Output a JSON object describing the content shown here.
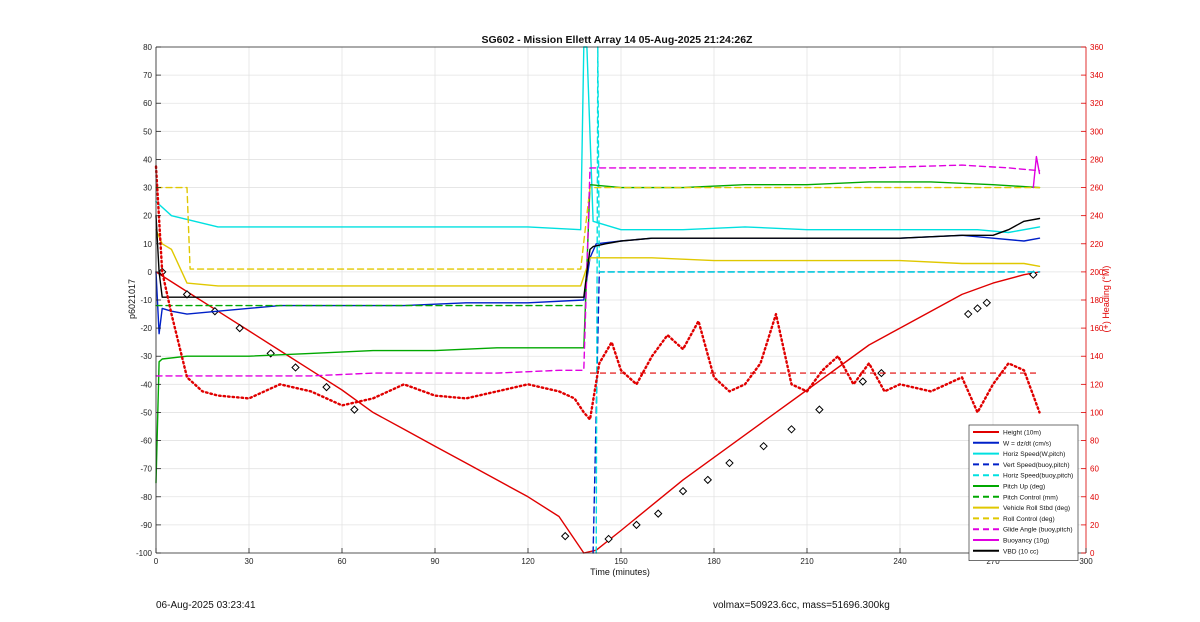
{
  "chart_data": {
    "type": "line",
    "title": "SG602 - Mission Ellett Array 14 05-Aug-2025 21:24:26Z",
    "xlabel": "Time (minutes)",
    "ylabel": "p6021017",
    "y2label": "(+) Heading (°M)",
    "xlim": [
      0,
      300
    ],
    "ylim": [
      -100,
      80
    ],
    "y2lim": [
      0,
      360
    ],
    "xticks": [
      0,
      30,
      60,
      90,
      120,
      150,
      180,
      210,
      240,
      270,
      300
    ],
    "yticks": [
      -100,
      -90,
      -80,
      -70,
      -60,
      -50,
      -40,
      -30,
      -20,
      -10,
      0,
      10,
      20,
      30,
      40,
      50,
      60,
      70,
      80
    ],
    "y2ticks": [
      0,
      20,
      40,
      60,
      80,
      100,
      120,
      140,
      160,
      180,
      200,
      220,
      240,
      260,
      280,
      300,
      320,
      340,
      360
    ],
    "grid": true,
    "legend_position": "bottom-right",
    "series": [
      {
        "name": "Height (10m)",
        "color": "#e00000",
        "style": "solid",
        "x": [
          0,
          10,
          20,
          30,
          40,
          50,
          60,
          70,
          80,
          90,
          100,
          110,
          120,
          130,
          138,
          142,
          150,
          160,
          170,
          180,
          190,
          200,
          210,
          220,
          230,
          240,
          250,
          260,
          270,
          280,
          285
        ],
        "y": [
          0,
          -7,
          -14,
          -21,
          -28,
          -35,
          -42,
          -50,
          -56,
          -62,
          -68,
          -74,
          -80,
          -87,
          -100,
          -99,
          -92,
          -83,
          -74,
          -66,
          -58,
          -50,
          -42,
          -34,
          -26,
          -20,
          -14,
          -8,
          -4,
          -1,
          0
        ],
        "markers_x": [
          2,
          10,
          19,
          27,
          37,
          45,
          55,
          64,
          132,
          146,
          155,
          162,
          170,
          178,
          185,
          196,
          205,
          214,
          228,
          234,
          262,
          265,
          268,
          283
        ],
        "markers_y": [
          0,
          -8,
          -14,
          -20,
          -29,
          -34,
          -41,
          -49,
          -94,
          -95,
          -90,
          -86,
          -78,
          -74,
          -68,
          -62,
          -56,
          -49,
          -39,
          -36,
          -15,
          -13,
          -11,
          -1
        ]
      },
      {
        "name": "W = dz/dt (cm/s)",
        "color": "#0020c8",
        "style": "solid",
        "x": [
          0,
          1,
          2,
          5,
          10,
          20,
          40,
          60,
          80,
          100,
          120,
          138,
          140,
          142,
          150,
          160,
          170,
          180,
          200,
          220,
          240,
          260,
          270,
          280,
          285
        ],
        "y": [
          0,
          -22,
          -13,
          -14,
          -15,
          -14,
          -12,
          -12,
          -12,
          -11,
          -11,
          -10,
          5,
          10,
          11,
          12,
          12,
          12,
          12,
          12,
          12,
          13,
          12,
          11,
          12
        ]
      },
      {
        "name": "Horiz Speed(W,pitch)",
        "color": "#00e0e0",
        "style": "solid",
        "x": [
          0,
          5,
          20,
          40,
          60,
          80,
          100,
          120,
          137,
          138,
          139,
          141,
          150,
          170,
          190,
          210,
          230,
          250,
          265,
          275,
          285
        ],
        "y": [
          25,
          20,
          16,
          16,
          16,
          16,
          16,
          16,
          15,
          80,
          80,
          18,
          15,
          15,
          16,
          15,
          15,
          15,
          15,
          14,
          16
        ]
      },
      {
        "name": "Vert Speed(buoy,pitch)",
        "color": "#0020c8",
        "style": "dashed",
        "x": [
          141,
          142,
          143,
          145,
          160,
          200,
          240,
          280,
          285
        ],
        "y": [
          -100,
          -50,
          0,
          0,
          0,
          0,
          0,
          0,
          0
        ]
      },
      {
        "name": "Horiz Speed(buoy,pitch)",
        "color": "#00e0e0",
        "style": "dashed",
        "x": [
          142,
          142.5,
          143,
          150,
          200,
          250,
          285
        ],
        "y": [
          -100,
          80,
          0,
          0,
          0,
          0,
          0
        ]
      },
      {
        "name": "Pitch Up (deg)",
        "color": "#00a800",
        "style": "solid",
        "x": [
          0,
          1,
          2,
          10,
          30,
          50,
          70,
          90,
          110,
          130,
          138,
          140,
          150,
          170,
          190,
          210,
          230,
          250,
          270,
          285
        ],
        "y": [
          -75,
          -32,
          -31,
          -30,
          -30,
          -29,
          -28,
          -28,
          -27,
          -27,
          -27,
          31,
          30,
          30,
          31,
          31,
          32,
          32,
          31,
          30
        ]
      },
      {
        "name": "Pitch Control (mm)",
        "color": "#00a800",
        "style": "dashed",
        "x": [
          0,
          5,
          10,
          30,
          50,
          70,
          90,
          110,
          130,
          138
        ],
        "y": [
          -12,
          -12,
          -12,
          -12,
          -12,
          -12,
          -12,
          -12,
          -12,
          -12
        ]
      },
      {
        "name": "Vehicle Roll Stbd (deg)",
        "color": "#e0c800",
        "style": "solid",
        "x": [
          0,
          2,
          5,
          10,
          20,
          40,
          60,
          80,
          100,
          120,
          137,
          140,
          145,
          160,
          180,
          200,
          220,
          240,
          260,
          270,
          280,
          285
        ],
        "y": [
          15,
          10,
          8,
          -4,
          -5,
          -5,
          -5,
          -5,
          -5,
          -5,
          -5,
          5,
          5,
          5,
          4,
          4,
          4,
          4,
          3,
          3,
          3,
          2
        ]
      },
      {
        "name": "Roll Control (deg)",
        "color": "#e0c800",
        "style": "dashed",
        "x": [
          0,
          1,
          10,
          11,
          30,
          60,
          90,
          120,
          137,
          140,
          150,
          170,
          200,
          230,
          260,
          285
        ],
        "y": [
          30,
          30,
          30,
          1,
          1,
          1,
          1,
          1,
          1,
          30,
          30,
          30,
          30,
          30,
          30,
          30
        ]
      },
      {
        "name": "Glide Angle (buoy,pitch)",
        "color": "#e000e0",
        "style": "dashed",
        "x": [
          0,
          10,
          30,
          50,
          70,
          90,
          110,
          130,
          138,
          140,
          150,
          170,
          200,
          230,
          260,
          275,
          285
        ],
        "y": [
          -37,
          -37,
          -37,
          -37,
          -36,
          -36,
          -36,
          -35,
          -35,
          37,
          37,
          37,
          37,
          37,
          38,
          37,
          36
        ]
      },
      {
        "name": "Buoyancy (10g)",
        "color": "#e000e0",
        "style": "solid",
        "x": [
          283,
          284,
          285
        ],
        "y": [
          30,
          41,
          35
        ]
      },
      {
        "name": "VBD (10 cc)",
        "color": "#000000",
        "style": "solid",
        "x": [
          0,
          1,
          2,
          10,
          40,
          80,
          120,
          138,
          139,
          140,
          141,
          145,
          150,
          160,
          180,
          200,
          220,
          240,
          260,
          270,
          275,
          280,
          285
        ],
        "y": [
          20,
          0,
          -9,
          -9,
          -9,
          -9,
          -9,
          -9,
          0,
          8,
          9,
          10,
          11,
          12,
          12,
          12,
          12,
          12,
          13,
          13,
          15,
          18,
          19
        ]
      },
      {
        "name": "(+) Heading (°M)",
        "axis": "right",
        "color": "#e00000",
        "style": "dotted",
        "x": [
          0,
          2,
          5,
          10,
          15,
          20,
          30,
          40,
          50,
          60,
          70,
          80,
          90,
          100,
          110,
          120,
          130,
          135,
          138,
          140,
          143,
          147,
          150,
          155,
          160,
          165,
          170,
          175,
          180,
          185,
          190,
          195,
          200,
          205,
          210,
          215,
          220,
          225,
          230,
          235,
          240,
          250,
          260,
          265,
          270,
          275,
          280,
          285
        ],
        "y": [
          275,
          200,
          170,
          125,
          115,
          112,
          110,
          120,
          115,
          105,
          110,
          120,
          112,
          110,
          115,
          120,
          115,
          110,
          100,
          95,
          135,
          150,
          130,
          120,
          140,
          155,
          145,
          165,
          125,
          115,
          120,
          135,
          170,
          120,
          115,
          130,
          140,
          120,
          135,
          115,
          120,
          115,
          125,
          100,
          120,
          135,
          130,
          100
        ]
      }
    ],
    "horizontal_reference": {
      "axis": "right",
      "y": 128,
      "color": "#e00000",
      "style": "dashed",
      "x_range": [
        140,
        285
      ]
    }
  },
  "footer": {
    "left": "06-Aug-2025 03:23:41",
    "right": "volmax=50923.6cc, mass=51696.300kg"
  }
}
